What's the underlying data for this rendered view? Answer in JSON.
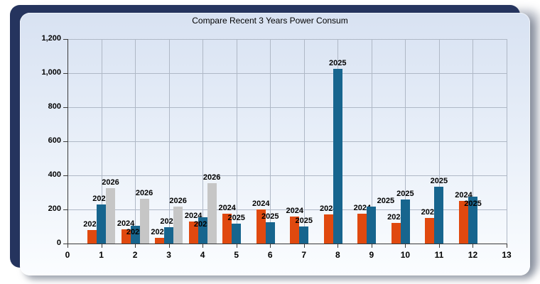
{
  "colors": {
    "frame": "#25345E",
    "panel_top": "#D8E2F2",
    "panel_bottom": "#FBFDFF",
    "grid": "#AFB8C6",
    "axis": "#3A3A3A",
    "text": "#000000"
  },
  "chart_data": {
    "type": "bar",
    "title": "Compare Recent 3 Years Power Consum",
    "categories": [
      1,
      2,
      3,
      4,
      5,
      6,
      7,
      8,
      9,
      10,
      11,
      12
    ],
    "series": [
      {
        "name": "2024",
        "color": "#E0490F",
        "values": [
          78,
          85,
          35,
          131,
          177,
          200,
          160,
          172,
          176,
          119,
          152,
          252
        ]
      },
      {
        "name": "2025",
        "color": "#17658E",
        "values": [
          228,
          105,
          94,
          156,
          115,
          127,
          102,
          1025,
          215,
          260,
          335,
          277
        ]
      },
      {
        "name": "2026",
        "color": "#C6C6C6",
        "values": [
          325,
          264,
          215,
          355,
          null,
          null,
          null,
          null,
          null,
          null,
          null,
          null
        ]
      }
    ],
    "xlabel": "",
    "ylabel": "",
    "xlim": [
      0,
      13
    ],
    "ylim": [
      0,
      1200
    ],
    "x_ticks": [
      "0",
      "1",
      "2",
      "3",
      "4",
      "5",
      "6",
      "7",
      "8",
      "9",
      "10",
      "11",
      "12",
      "13"
    ],
    "y_ticks": [
      "0",
      "200",
      "400",
      "600",
      "800",
      "1,000",
      "1,200"
    ],
    "grid": true,
    "legend": "none",
    "bar_labels": "series year annotated above each bar"
  }
}
